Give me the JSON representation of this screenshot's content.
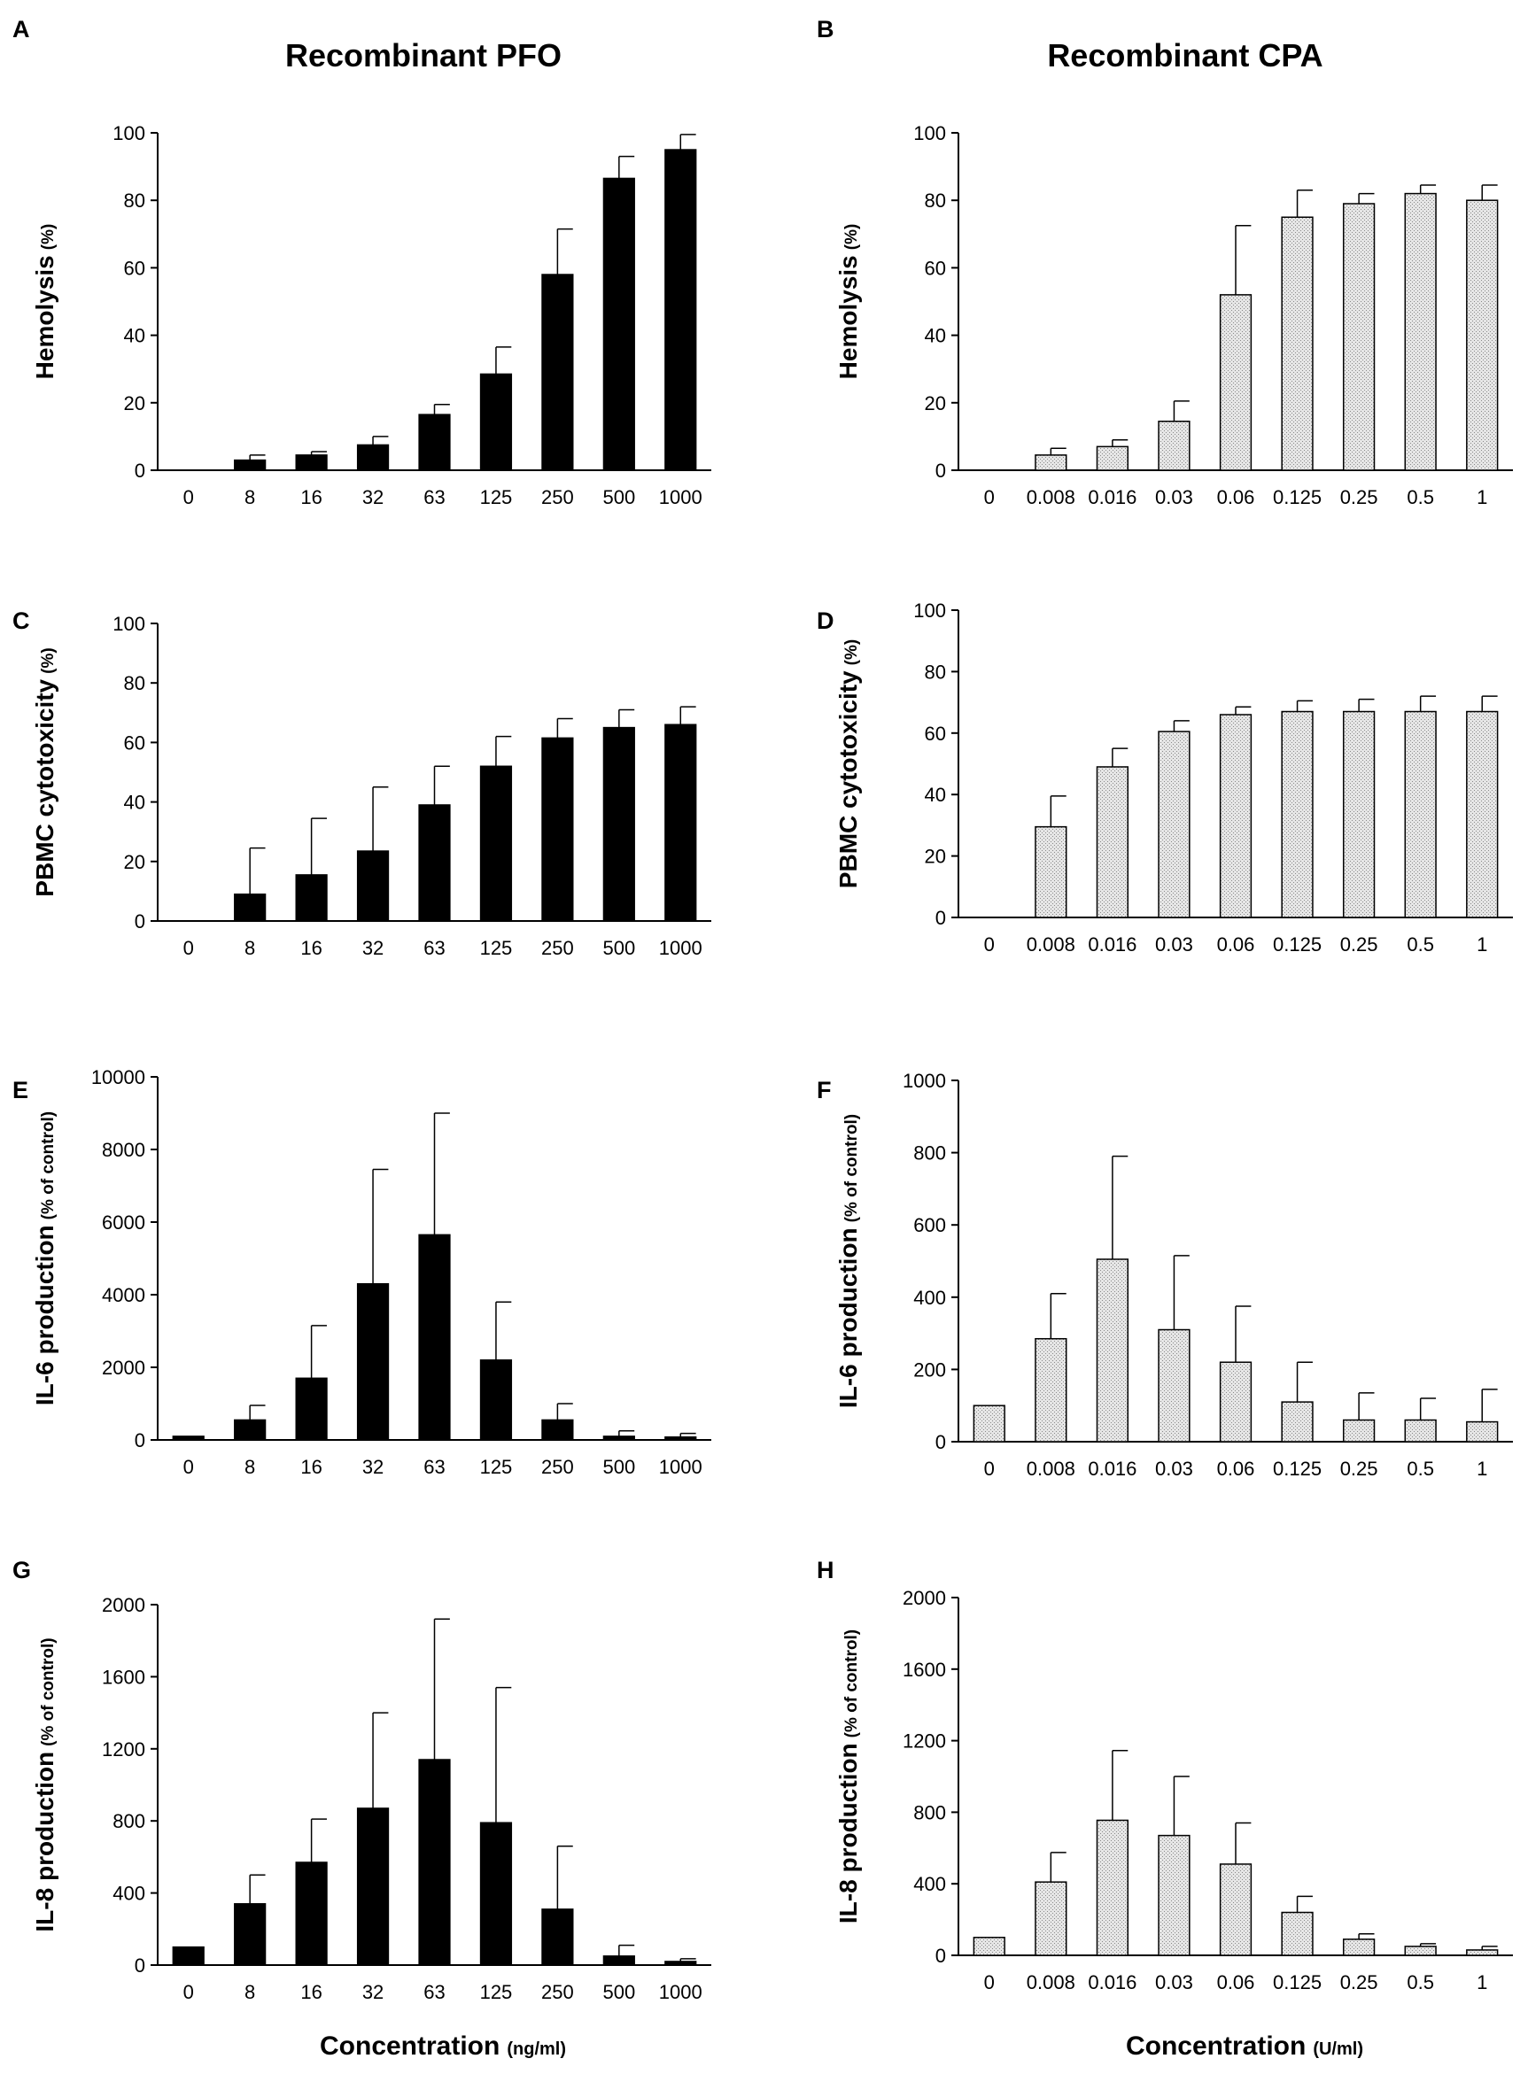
{
  "column_titles": [
    "Recombinant PFO",
    "Recombinant CPA"
  ],
  "x_axis_labels": [
    {
      "main": "Concentration",
      "unit": "(ng/ml)"
    },
    {
      "main": "Concentration",
      "unit": "(U/ml)"
    }
  ],
  "colors": {
    "pfo_bar": "#000000",
    "cpa_bar": "#d8d8d8",
    "axis": "#000000"
  },
  "chart_data": [
    {
      "panel": "A",
      "type": "bar",
      "ylabel": "Hemolysis",
      "ylabel_unit": "(%)",
      "ylim": [
        0,
        100
      ],
      "yticks": [
        0,
        20,
        40,
        60,
        80,
        100
      ],
      "categories": [
        "0",
        "8",
        "16",
        "32",
        "63",
        "125",
        "250",
        "500",
        "1000"
      ],
      "values": [
        0,
        3,
        4.5,
        7.5,
        16.5,
        28.5,
        58,
        86.5,
        95
      ],
      "errors": [
        0,
        1.5,
        1,
        2.5,
        3,
        8,
        13.5,
        6.5,
        4.5
      ]
    },
    {
      "panel": "B",
      "type": "bar",
      "ylabel": "Hemolysis",
      "ylabel_unit": "(%)",
      "ylim": [
        0,
        100
      ],
      "yticks": [
        0,
        20,
        40,
        60,
        80,
        100
      ],
      "categories": [
        "0",
        "0.008",
        "0.016",
        "0.03",
        "0.06",
        "0.125",
        "0.25",
        "0.5",
        "1"
      ],
      "values": [
        0,
        4.5,
        7,
        14.5,
        52,
        75,
        79,
        82,
        80
      ],
      "errors": [
        0,
        2,
        2,
        6,
        20.5,
        8,
        3,
        2.5,
        4.5
      ]
    },
    {
      "panel": "C",
      "type": "bar",
      "ylabel": "PBMC cytotoxicity",
      "ylabel_unit": "(%)",
      "ylim": [
        0,
        100
      ],
      "yticks": [
        0,
        20,
        40,
        60,
        80,
        100
      ],
      "categories": [
        "0",
        "8",
        "16",
        "32",
        "63",
        "125",
        "250",
        "500",
        "1000"
      ],
      "values": [
        0,
        9,
        15.5,
        23.5,
        39,
        52,
        61.5,
        65,
        66
      ],
      "errors": [
        0,
        15.5,
        19,
        21.5,
        13,
        10,
        6.5,
        6,
        6
      ]
    },
    {
      "panel": "D",
      "type": "bar",
      "ylabel": "PBMC cytotoxicity",
      "ylabel_unit": "(%)",
      "ylim": [
        0,
        100
      ],
      "yticks": [
        0,
        20,
        40,
        60,
        80,
        100
      ],
      "categories": [
        "0",
        "0.008",
        "0.016",
        "0.03",
        "0.06",
        "0.125",
        "0.25",
        "0.5",
        "1"
      ],
      "values": [
        0,
        29.5,
        49,
        60.5,
        66,
        67,
        67,
        67,
        67
      ],
      "errors": [
        0,
        10,
        6,
        3.5,
        2.5,
        3.5,
        4,
        5,
        5
      ]
    },
    {
      "panel": "E",
      "type": "bar",
      "ylabel": "IL-6 production",
      "ylabel_unit": "(% of control)",
      "ylim": [
        0,
        10000
      ],
      "yticks": [
        0,
        2000,
        4000,
        6000,
        8000,
        10000
      ],
      "categories": [
        "0",
        "8",
        "16",
        "32",
        "63",
        "125",
        "250",
        "500",
        "1000"
      ],
      "values": [
        100,
        550,
        1700,
        4300,
        5650,
        2200,
        550,
        100,
        80
      ],
      "errors": [
        0,
        400,
        1450,
        3150,
        3350,
        1600,
        450,
        150,
        100
      ]
    },
    {
      "panel": "F",
      "type": "bar",
      "ylabel": "IL-6 production",
      "ylabel_unit": "(% of control)",
      "ylim": [
        0,
        1000
      ],
      "yticks": [
        0,
        200,
        400,
        600,
        800,
        1000
      ],
      "categories": [
        "0",
        "0.008",
        "0.016",
        "0.03",
        "0.06",
        "0.125",
        "0.25",
        "0.5",
        "1"
      ],
      "values": [
        100,
        285,
        505,
        310,
        220,
        110,
        60,
        60,
        55
      ],
      "errors": [
        0,
        125,
        285,
        205,
        155,
        110,
        75,
        60,
        90
      ]
    },
    {
      "panel": "G",
      "type": "bar",
      "ylabel": "IL-8 production",
      "ylabel_unit": "(% of control)",
      "ylim": [
        0,
        2000
      ],
      "yticks": [
        0,
        400,
        800,
        1200,
        1600,
        2000
      ],
      "categories": [
        "0",
        "8",
        "16",
        "32",
        "63",
        "125",
        "250",
        "500",
        "1000"
      ],
      "values": [
        100,
        340,
        570,
        870,
        1140,
        790,
        310,
        50,
        20
      ],
      "errors": [
        0,
        160,
        240,
        530,
        780,
        750,
        350,
        60,
        15
      ]
    },
    {
      "panel": "H",
      "type": "bar",
      "ylabel": "IL-8 production",
      "ylabel_unit": "(% of control)",
      "ylim": [
        0,
        2000
      ],
      "yticks": [
        0,
        400,
        800,
        1200,
        1600,
        2000
      ],
      "categories": [
        "0",
        "0.008",
        "0.016",
        "0.03",
        "0.06",
        "0.125",
        "0.25",
        "0.5",
        "1"
      ],
      "values": [
        100,
        410,
        755,
        670,
        510,
        240,
        90,
        50,
        30
      ],
      "errors": [
        0,
        165,
        390,
        330,
        230,
        90,
        30,
        15,
        20
      ]
    }
  ]
}
